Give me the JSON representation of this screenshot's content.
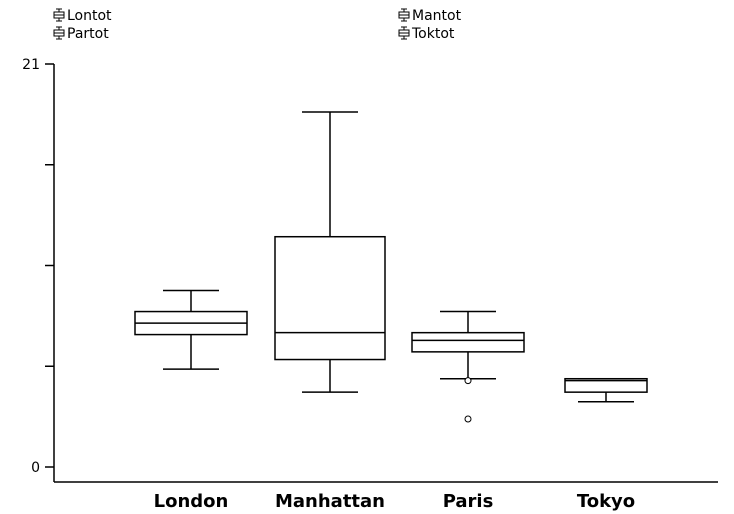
{
  "chart_data": {
    "type": "box",
    "categories": [
      "London",
      "Manhattan",
      "Paris",
      "Tokyo"
    ],
    "series": [
      {
        "category": "London",
        "min": 5.1,
        "q1": 6.9,
        "median": 7.5,
        "q3": 8.1,
        "max": 9.2,
        "outliers": []
      },
      {
        "category": "Manhattan",
        "min": 3.9,
        "q1": 5.6,
        "median": 7.0,
        "q3": 12.0,
        "max": 18.5,
        "outliers": []
      },
      {
        "category": "Paris",
        "min": 4.6,
        "q1": 6.0,
        "median": 6.6,
        "q3": 7.0,
        "max": 8.1,
        "outliers": [
          4.5,
          2.5
        ]
      },
      {
        "category": "Tokyo",
        "min": 3.4,
        "q1": 3.9,
        "median": 4.5,
        "q3": 4.6,
        "max": 4.6,
        "outliers": []
      }
    ],
    "legend": [
      "Lontot",
      "Partot",
      "Mantot",
      "Toktot"
    ],
    "ylim": [
      0,
      21
    ],
    "y_tick_labels": [
      "0",
      "21"
    ],
    "y_ticks": [
      0,
      5.25,
      10.5,
      15.75,
      21
    ],
    "legend_placement": "top",
    "grid": false
  }
}
